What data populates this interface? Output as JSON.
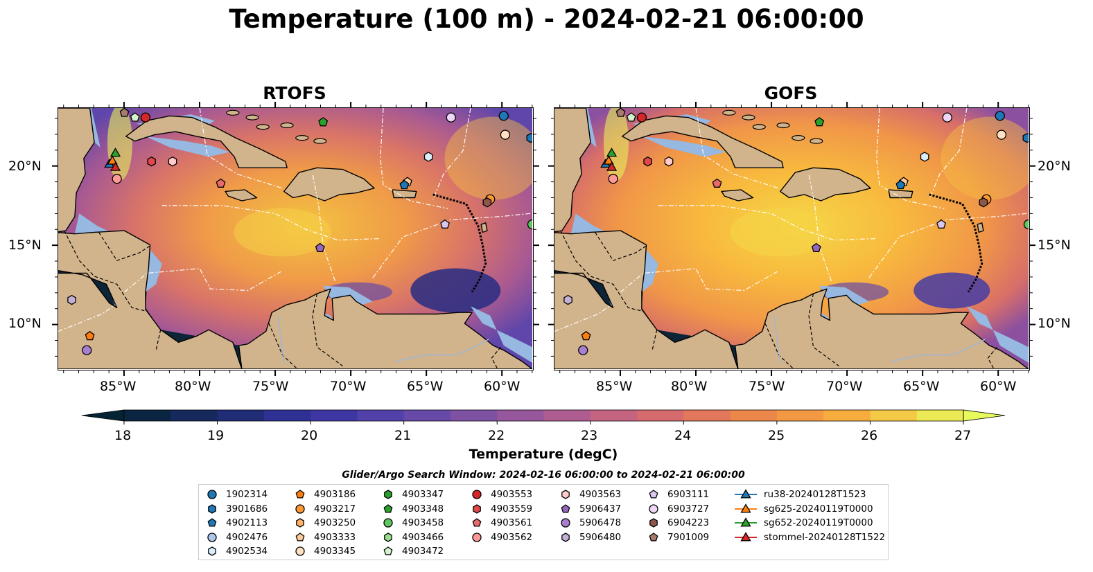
{
  "title": "Temperature (100 m) - 2024-02-21 06:00:00",
  "panels": [
    {
      "id": "rtofs",
      "title": "RTOFS"
    },
    {
      "id": "gofs",
      "title": "GOFS"
    }
  ],
  "lat_labels": [
    "20°N",
    "15°N",
    "10°N"
  ],
  "lon_labels": [
    "85°W",
    "80°W",
    "75°W",
    "70°W",
    "65°W",
    "60°W"
  ],
  "colorbar": {
    "label": "Temperature (degC)",
    "min": 18,
    "max": 27,
    "step": 0.5,
    "ticks": [
      "18",
      "19",
      "20",
      "21",
      "22",
      "23",
      "24",
      "25",
      "26",
      "27"
    ],
    "extend": "both",
    "cmap": "thermal"
  },
  "legend": {
    "title": "Glider/Argo Search Window: 2024-02-16 06:00:00 to 2024-02-21 06:00:00",
    "columns": [
      [
        {
          "label": "1902314",
          "marker": "circle",
          "color": "#1f77b4"
        },
        {
          "label": "3901686",
          "marker": "hexagon",
          "color": "#1f77b4"
        },
        {
          "label": "4902113",
          "marker": "pentagon",
          "color": "#1f77b4"
        },
        {
          "label": "4902476",
          "marker": "circle",
          "color": "#aec7e8"
        },
        {
          "label": "4902534",
          "marker": "hexagon",
          "color": "#d9eefa"
        }
      ],
      [
        {
          "label": "4903186",
          "marker": "pentagon",
          "color": "#ff7f0e"
        },
        {
          "label": "4903217",
          "marker": "circle",
          "color": "#ff9933"
        },
        {
          "label": "4903250",
          "marker": "hexagon",
          "color": "#ffb366"
        },
        {
          "label": "4903333",
          "marker": "pentagon",
          "color": "#ffcc99"
        },
        {
          "label": "4903345",
          "marker": "circle",
          "color": "#ffe0c2"
        }
      ],
      [
        {
          "label": "4903347",
          "marker": "hexagon",
          "color": "#2ca02c"
        },
        {
          "label": "4903348",
          "marker": "pentagon",
          "color": "#2ca02c"
        },
        {
          "label": "4903458",
          "marker": "circle",
          "color": "#5fc75f"
        },
        {
          "label": "4903466",
          "marker": "hexagon",
          "color": "#98df8a"
        },
        {
          "label": "4903472",
          "marker": "pentagon",
          "color": "#d4f5cc"
        }
      ],
      [
        {
          "label": "4903553",
          "marker": "circle",
          "color": "#d62728"
        },
        {
          "label": "4903559",
          "marker": "hexagon",
          "color": "#e0474a"
        },
        {
          "label": "4903561",
          "marker": "pentagon",
          "color": "#e86a6a"
        },
        {
          "label": "4903562",
          "marker": "circle",
          "color": "#ff9896"
        }
      ],
      [
        {
          "label": "4903563",
          "marker": "hexagon",
          "color": "#ffcccb"
        },
        {
          "label": "5906437",
          "marker": "pentagon",
          "color": "#9467bd"
        },
        {
          "label": "5906478",
          "marker": "circle",
          "color": "#a77ed0"
        },
        {
          "label": "5906480",
          "marker": "hexagon",
          "color": "#c5b0d5"
        }
      ],
      [
        {
          "label": "6903111",
          "marker": "pentagon",
          "color": "#d8c8ee"
        },
        {
          "label": "6903727",
          "marker": "circle",
          "color": "#eed6f7"
        },
        {
          "label": "6904223",
          "marker": "hexagon",
          "color": "#8c564b"
        },
        {
          "label": "7901009",
          "marker": "pentagon",
          "color": "#a97b6f"
        }
      ],
      [
        {
          "label": "ru38-20240128T1523",
          "marker": "triangle-line",
          "color": "#1f77b4"
        },
        {
          "label": "sg625-20240119T0000",
          "marker": "triangle-line",
          "color": "#ff7f0e"
        },
        {
          "label": "sg652-20240119T0000",
          "marker": "triangle-line",
          "color": "#2ca02c"
        },
        {
          "label": "stommel-20240128T1522",
          "marker": "triangle-line",
          "color": "#d62728"
        }
      ]
    ]
  },
  "colors": {
    "land": "#d2b48c",
    "shelf": "#96b8e1",
    "deep_ocean": "#0d2536",
    "eez": "#ffffff"
  },
  "markers_on_map": [
    {
      "label": "7901009",
      "lon": -85.0,
      "lat": 23.4
    },
    {
      "label": "4903472",
      "lon": -84.3,
      "lat": 23.1
    },
    {
      "label": "4903553",
      "lon": -83.6,
      "lat": 23.1
    },
    {
      "label": "4903348",
      "lon": -71.8,
      "lat": 22.8
    },
    {
      "label": "6903727",
      "lon": -63.3,
      "lat": 23.1
    },
    {
      "label": "1902314",
      "lon": -59.8,
      "lat": 23.2
    },
    {
      "label": "4903345",
      "lon": -59.7,
      "lat": 22.0
    },
    {
      "label": "3901686",
      "lon": -58.0,
      "lat": 21.8
    },
    {
      "label": "4902534",
      "lon": -64.8,
      "lat": 20.6
    },
    {
      "label": "4903559",
      "lon": -83.2,
      "lat": 20.3
    },
    {
      "label": "4903563",
      "lon": -81.8,
      "lat": 20.3
    },
    {
      "label": "4903561",
      "lon": -78.6,
      "lat": 18.9
    },
    {
      "label": "4903333",
      "lon": -66.2,
      "lat": 19.0
    },
    {
      "label": "4902113",
      "lon": -66.4,
      "lat": 18.8
    },
    {
      "label": "4903562",
      "lon": -85.5,
      "lat": 19.2
    },
    {
      "label": "4903217",
      "lon": -60.7,
      "lat": 17.9
    },
    {
      "label": "6904223",
      "lon": -60.9,
      "lat": 17.7
    },
    {
      "label": "6903111",
      "lon": -63.7,
      "lat": 16.3
    },
    {
      "label": "4903458",
      "lon": -57.9,
      "lat": 16.3
    },
    {
      "label": "5906437",
      "lon": -72.0,
      "lat": 14.8
    },
    {
      "label": "5906480",
      "lon": -88.5,
      "lat": 11.5
    },
    {
      "label": "4903186",
      "lon": -87.3,
      "lat": 9.2
    },
    {
      "label": "5906478",
      "lon": -87.5,
      "lat": 8.3
    }
  ],
  "glider_tracks": [
    {
      "label": "sg652-20240119T0000",
      "lon": -85.6,
      "lat": 20.8
    },
    {
      "label": "ru38-20240128T1523",
      "lon": -86.0,
      "lat": 20.1
    },
    {
      "label": "sg625-20240119T0000",
      "lon": -85.8,
      "lat": 20.3
    },
    {
      "label": "stommel-20240128T1522",
      "lon": -85.6,
      "lat": 19.9
    }
  ]
}
